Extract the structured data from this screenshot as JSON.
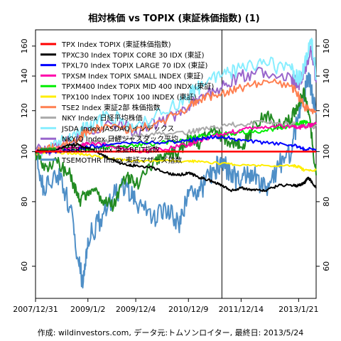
{
  "chart_data": {
    "type": "line",
    "title": "相対株価 vs TOPIX (東証株価指数) (1)",
    "footer": "作成: wildinvestors.com, データ元:トムソンロイター, 最終日: 2013/5/24",
    "x_ticks": [
      "2007/12/31",
      "2009/1/2",
      "2009/12/4",
      "2010/12/9",
      "2011/12/14",
      "2013/1/21"
    ],
    "x_range": [
      "2007/12/31",
      "2013/5/24"
    ],
    "y_scale": "log",
    "y_ticks": [
      60,
      80,
      100,
      120,
      140,
      160
    ],
    "ylim": [
      52,
      172
    ],
    "reference_line": 100,
    "vertical_marker": "2011/8/1",
    "legend_position": "top-left",
    "series": [
      {
        "name": "TPX Index TOPIX (東証株価指数)",
        "color": "#ff0000",
        "x": [
          "2007/12/31",
          "2013/5/24"
        ],
        "y": [
          100,
          100
        ]
      },
      {
        "name": "TPXC30 Index TOPIX CORE 30 IDX (東証)",
        "color": "#000000",
        "x": [
          "2007/12/31",
          "2008/3/1",
          "2008/6/1",
          "2008/9/1",
          "2008/11/1",
          "2009/1/2",
          "2009/4/1",
          "2009/7/1",
          "2009/10/1",
          "2009/12/4",
          "2010/4/1",
          "2010/7/1",
          "2010/10/1",
          "2010/12/9",
          "2011/3/1",
          "2011/6/1",
          "2011/8/1",
          "2011/10/1",
          "2011/12/14",
          "2012/3/1",
          "2012/6/1",
          "2012/9/1",
          "2012/12/1",
          "2013/1/21",
          "2013/3/1",
          "2013/4/1",
          "2013/5/24"
        ],
        "y": [
          100,
          100.5,
          101,
          103,
          103,
          101.5,
          99,
          96,
          94,
          94,
          93,
          91,
          90,
          91,
          89,
          87.5,
          86,
          84,
          85,
          84.5,
          84,
          86,
          86,
          86,
          87,
          89,
          85
        ]
      },
      {
        "name": "TPXL70 Index TOPIX LARGE 70 IDX (東証)",
        "color": "#0000ff",
        "x": [
          "2007/12/31",
          "2008/6/1",
          "2008/11/1",
          "2009/1/2",
          "2009/6/1",
          "2009/12/4",
          "2010/6/1",
          "2010/12/9",
          "2011/3/1",
          "2011/8/1",
          "2011/12/14",
          "2012/6/1",
          "2012/12/1",
          "2013/1/21",
          "2013/3/1",
          "2013/5/24"
        ],
        "y": [
          100,
          100,
          101,
          102,
          103,
          104,
          104,
          105,
          106,
          107,
          105,
          104,
          103,
          102,
          101,
          101
        ]
      },
      {
        "name": "TPXSM Index TOPIX SMALL INDEX (東証)",
        "color": "#ff00aa",
        "x": [
          "2007/12/31",
          "2008/6/1",
          "2008/11/1",
          "2009/1/2",
          "2009/6/1",
          "2009/12/4",
          "2010/6/1",
          "2010/12/9",
          "2011/3/1",
          "2011/8/1",
          "2011/12/14",
          "2012/6/1",
          "2012/12/1",
          "2013/1/21",
          "2013/3/1",
          "2013/5/24"
        ],
        "y": [
          100,
          101,
          102,
          104,
          103,
          100,
          101,
          103,
          105,
          108,
          110,
          112,
          112,
          111,
          112,
          113
        ]
      },
      {
        "name": "TPXM400 Index TOPIX MID 400 INDX (東証)",
        "color": "#00ee00",
        "x": [
          "2007/12/31",
          "2008/6/1",
          "2008/11/1",
          "2009/1/2",
          "2009/6/1",
          "2009/12/4",
          "2010/6/1",
          "2010/12/9",
          "2011/3/1",
          "2011/8/1",
          "2011/12/14",
          "2012/6/1",
          "2012/12/1",
          "2013/1/21",
          "2013/3/1",
          "2013/5/24"
        ],
        "y": [
          100,
          101,
          101,
          101,
          102,
          103,
          104,
          106,
          107,
          108,
          109,
          110,
          112,
          113,
          114,
          113
        ]
      },
      {
        "name": "TPX100 Index TOPIX 100 INDEX (東証)",
        "color": "#ffee00",
        "x": [
          "2007/12/31",
          "2008/6/1",
          "2008/11/1",
          "2009/1/2",
          "2009/6/1",
          "2009/12/4",
          "2010/6/1",
          "2010/12/9",
          "2011/3/1",
          "2011/8/1",
          "2011/12/14",
          "2012/6/1",
          "2012/12/1",
          "2013/1/21",
          "2013/3/1",
          "2013/5/24"
        ],
        "y": [
          100,
          99.5,
          99,
          98.5,
          97,
          96,
          96,
          96,
          95.5,
          95,
          94,
          94,
          94,
          93.5,
          92,
          92
        ]
      },
      {
        "name": "TSE2 Index 東証2部 株価指数",
        "color": "#ff7f50",
        "x": [
          "2007/12/31",
          "2008/6/1",
          "2008/11/1",
          "2009/1/2",
          "2009/6/1",
          "2009/12/4",
          "2010/6/1",
          "2010/12/9",
          "2011/3/1",
          "2011/8/1",
          "2011/12/14",
          "2012/6/1",
          "2012/12/1",
          "2013/1/21",
          "2013/3/1",
          "2013/5/24"
        ],
        "y": [
          100,
          102,
          106,
          110,
          112,
          110,
          114,
          122,
          126,
          130,
          133,
          137,
          134,
          128,
          122,
          120
        ]
      },
      {
        "name": "NKY Index 日経平均株価",
        "color": "#aaaaaa",
        "x": [
          "2007/12/31",
          "2008/6/1",
          "2008/11/1",
          "2009/1/2",
          "2009/6/1",
          "2009/12/4",
          "2010/6/1",
          "2010/12/9",
          "2011/3/1",
          "2011/8/1",
          "2011/12/14",
          "2012/6/1",
          "2012/12/1",
          "2013/1/21",
          "2013/3/1",
          "2013/5/24"
        ],
        "y": [
          100,
          101,
          102,
          104,
          105,
          107,
          108,
          109,
          110,
          112,
          113,
          114,
          113,
          113,
          112,
          112
        ]
      },
      {
        "name": "JSDA Index JASDAQ インデックス",
        "color": "#88eeff",
        "x": [
          "2007/12/31",
          "2008/6/1",
          "2008/11/1",
          "2009/1/2",
          "2009/6/1",
          "2009/12/4",
          "2010/6/1",
          "2010/12/9",
          "2011/3/1",
          "2011/8/1",
          "2011/12/14",
          "2012/6/1",
          "2012/12/1",
          "2013/1/21",
          "2013/3/1",
          "2013/4/20",
          "2013/5/24"
        ],
        "y": [
          100,
          103,
          108,
          112,
          117,
          112,
          118,
          128,
          134,
          140,
          145,
          148,
          144,
          138,
          146,
          165,
          140
        ]
      },
      {
        "name": "NKYJQ Index 日経ジャスダック平均",
        "color": "#9966cc",
        "x": [
          "2007/12/31",
          "2008/6/1",
          "2008/11/1",
          "2009/1/2",
          "2009/6/1",
          "2009/12/4",
          "2010/6/1",
          "2010/12/9",
          "2011/3/1",
          "2011/8/1",
          "2011/12/14",
          "2012/6/1",
          "2012/12/1",
          "2013/1/21",
          "2013/3/1",
          "2013/4/20",
          "2013/5/24"
        ],
        "y": [
          100,
          102,
          106,
          110,
          114,
          110,
          114,
          122,
          128,
          133,
          140,
          143,
          139,
          134,
          142,
          158,
          136
        ]
      },
      {
        "name": "TSEREIT Index 東証REIT指数",
        "color": "#228b22",
        "x": [
          "2007/12/31",
          "2008/3/1",
          "2008/6/1",
          "2008/9/1",
          "2008/11/1",
          "2009/1/2",
          "2009/4/1",
          "2009/7/1",
          "2009/10/1",
          "2009/12/4",
          "2010/4/1",
          "2010/7/1",
          "2010/10/1",
          "2010/12/9",
          "2011/3/1",
          "2011/6/1",
          "2011/8/1",
          "2011/10/1",
          "2011/12/14",
          "2012/3/1",
          "2012/6/1",
          "2012/9/1",
          "2012/12/1",
          "2013/1/21",
          "2013/3/1",
          "2013/4/1",
          "2013/5/24"
        ],
        "y": [
          100,
          92,
          95,
          90,
          80,
          84,
          82,
          78,
          90,
          86,
          94,
          98,
          100,
          106,
          104,
          110,
          107,
          104,
          102,
          110,
          118,
          112,
          116,
          124,
          130,
          118,
          90
        ]
      },
      {
        "name": "TSEMOTHR Index 東証マザーズ指数",
        "color": "#4f8fc7",
        "x": [
          "2007/12/31",
          "2008/3/1",
          "2008/6/1",
          "2008/9/1",
          "2008/11/1",
          "2008/12/1",
          "2009/1/2",
          "2009/4/1",
          "2009/7/1",
          "2009/10/1",
          "2009/12/4",
          "2010/4/1",
          "2010/7/1",
          "2010/10/1",
          "2010/12/9",
          "2011/3/1",
          "2011/6/1",
          "2011/8/1",
          "2011/10/1",
          "2011/12/14",
          "2012/3/1",
          "2012/6/1",
          "2012/9/1",
          "2012/12/1",
          "2013/1/21",
          "2013/3/1",
          "2013/4/1",
          "2013/5/24"
        ],
        "y": [
          100,
          84,
          90,
          78,
          60,
          56,
          68,
          74,
          82,
          86,
          80,
          74,
          78,
          72,
          82,
          84,
          92,
          96,
          90,
          88,
          92,
          84,
          94,
          100,
          118,
          130,
          142,
          118
        ]
      }
    ]
  }
}
